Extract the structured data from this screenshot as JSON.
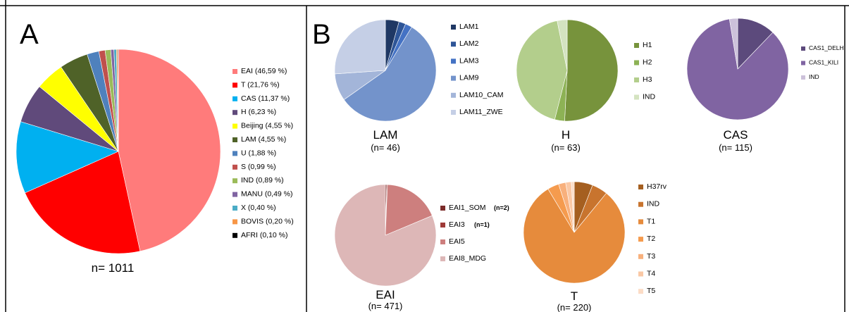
{
  "panel_a": {
    "letter": "A",
    "n_label": "n= 1011"
  },
  "panel_b": {
    "letter": "B"
  },
  "chart_data": [
    {
      "panel": "A",
      "type": "pie",
      "n_label": "n= 1011",
      "slices": [
        {
          "label": "EAI (46,59 %)",
          "value": 46.59,
          "color": "#FF7B7B"
        },
        {
          "label": "T (21,76 %)",
          "value": 21.76,
          "color": "#FF0000"
        },
        {
          "label": "CAS (11,37 %)",
          "value": 11.37,
          "color": "#00B0F0"
        },
        {
          "label": "H (6,23 %)",
          "value": 6.23,
          "color": "#604A7B"
        },
        {
          "label": "Beijing (4,55 %)",
          "value": 4.55,
          "color": "#FFFF00"
        },
        {
          "label": "LAM (4,55 %)",
          "value": 4.55,
          "color": "#4F6228"
        },
        {
          "label": "U (1,88 %)",
          "value": 1.88,
          "color": "#4F81BD"
        },
        {
          "label": "S (0,99 %)",
          "value": 0.99,
          "color": "#C0504D"
        },
        {
          "label": "IND (0,89 %)",
          "value": 0.89,
          "color": "#9BBB59"
        },
        {
          "label": "MANU (0,49 %)",
          "value": 0.49,
          "color": "#8064A2"
        },
        {
          "label": "X (0,40 %)",
          "value": 0.4,
          "color": "#4BACC6"
        },
        {
          "label": "BOVIS (0,20 %)",
          "value": 0.2,
          "color": "#F79646"
        },
        {
          "label": "AFRI (0,10 %)",
          "value": 0.1,
          "color": "#000000"
        }
      ]
    },
    {
      "panel": "B",
      "type": "pie",
      "title": "LAM",
      "n_label": "(n= 46)",
      "slices": [
        {
          "label": "LAM1",
          "value": 2,
          "color": "#1F3864"
        },
        {
          "label": "LAM2",
          "value": 1,
          "color": "#2E5597"
        },
        {
          "label": "LAM3",
          "value": 1,
          "color": "#4472C4"
        },
        {
          "label": "LAM9",
          "value": 26,
          "color": "#7393CB"
        },
        {
          "label": "LAM10_CAM",
          "value": 4,
          "color": "#A3B5D9"
        },
        {
          "label": "LAM11_ZWE",
          "value": 12,
          "color": "#C5CFE6"
        }
      ]
    },
    {
      "panel": "B",
      "type": "pie",
      "title": "H",
      "n_label": "(n= 63)",
      "slices": [
        {
          "label": "H1",
          "value": 32,
          "color": "#77933C"
        },
        {
          "label": "H2",
          "value": 2,
          "color": "#8DB255"
        },
        {
          "label": "H3",
          "value": 27,
          "color": "#B3CE8C"
        },
        {
          "label": "IND",
          "value": 2,
          "color": "#D4E3C0"
        }
      ]
    },
    {
      "panel": "B",
      "type": "pie",
      "title": "CAS",
      "n_label": "(n= 115)",
      "slices": [
        {
          "label": "CAS1_DELH",
          "value": 14,
          "color": "#5C4A7C"
        },
        {
          "label": "CAS1_KILI",
          "value": 98,
          "color": "#8064A2"
        },
        {
          "label": "IND",
          "value": 3,
          "color": "#CCC1DA"
        }
      ]
    },
    {
      "panel": "B",
      "type": "pie",
      "title": "EAI",
      "n_label": "(n= 471)",
      "slices": [
        {
          "label": "EAI1_SOM",
          "note": "(n=2)",
          "value": 2,
          "color": "#7B2B29"
        },
        {
          "label": "EAI3",
          "note": "(n=1)",
          "value": 1,
          "color": "#9E3A38"
        },
        {
          "label": "EAI5",
          "value": 85,
          "color": "#CD7F7E"
        },
        {
          "label": "EAI8_MDG",
          "value": 383,
          "color": "#DDB7B7"
        }
      ]
    },
    {
      "panel": "B",
      "type": "pie",
      "title": "T",
      "n_label": "(n= 220)",
      "slices": [
        {
          "label": "H37rv",
          "value": 13,
          "color": "#A55F20"
        },
        {
          "label": "IND",
          "value": 11,
          "color": "#C8742E"
        },
        {
          "label": "T1",
          "value": 177,
          "color": "#E68B3C"
        },
        {
          "label": "T2",
          "value": 8,
          "color": "#F59B4E"
        },
        {
          "label": "T3",
          "value": 5,
          "color": "#F8B07C"
        },
        {
          "label": "T4",
          "value": 4,
          "color": "#FAC8A5"
        },
        {
          "label": "T5",
          "value": 2,
          "color": "#FCDCC6"
        }
      ]
    }
  ]
}
